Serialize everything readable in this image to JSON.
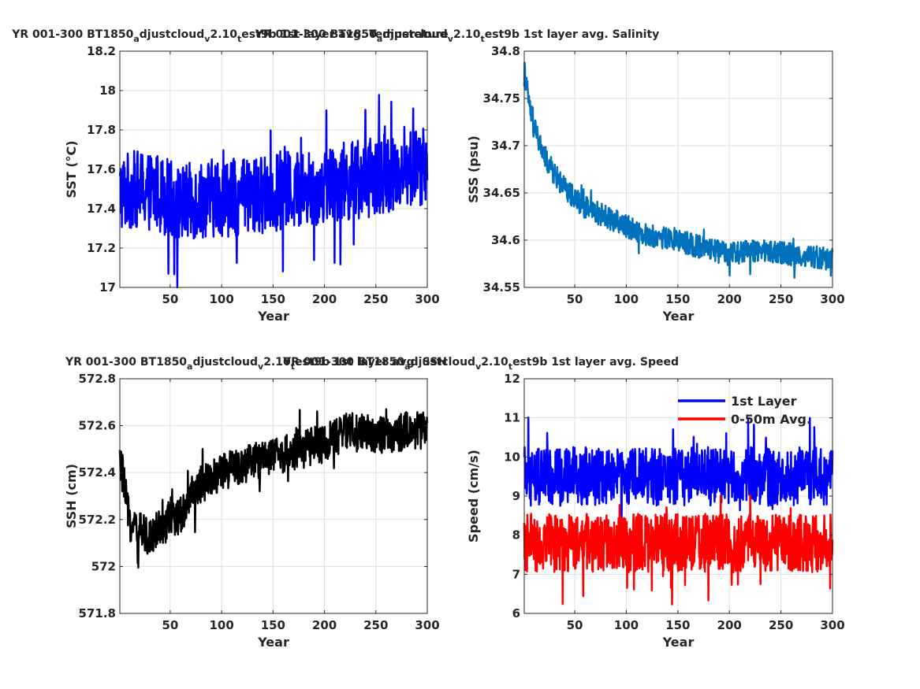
{
  "chart_data": [
    {
      "type": "line",
      "title": {
        "base": "YR 001-300 BT1850",
        "s1": "a",
        "m1": "djustcloud",
        "s2": "v",
        "m2": "2.10",
        "s3": "t",
        "end": "est9b 1st layer avg. Temperature"
      },
      "xlabel": "Year",
      "ylabel": "SST (°C)",
      "xlim": [
        1,
        300
      ],
      "ylim": [
        17,
        18.2
      ],
      "xticks": [
        50,
        100,
        150,
        200,
        250,
        300
      ],
      "yticks": [
        17,
        17.2,
        17.4,
        17.6,
        17.8,
        18,
        18.2
      ],
      "ytick_labels": [
        "17",
        "17.2",
        "17.4",
        "17.6",
        "17.8",
        "18",
        "18.2"
      ],
      "grid": true,
      "series": [
        {
          "color": "#0000ff",
          "x": [
            1,
            20,
            40,
            60,
            80,
            100,
            120,
            140,
            160,
            180,
            200,
            220,
            240,
            260,
            280,
            300
          ],
          "y": [
            17.48,
            17.5,
            17.48,
            17.42,
            17.45,
            17.46,
            17.45,
            17.47,
            17.49,
            17.5,
            17.52,
            17.54,
            17.55,
            17.58,
            17.6,
            17.62
          ],
          "spread": 0.2
        }
      ]
    },
    {
      "type": "line",
      "title": {
        "base": "YR 001-300 BT1850",
        "s1": "a",
        "m1": "djustcloud",
        "s2": "v",
        "m2": "2.10",
        "s3": "t",
        "end": "est9b 1st layer avg. Salinity"
      },
      "xlabel": "Year",
      "ylabel": "SSS (psu)",
      "xlim": [
        1,
        300
      ],
      "ylim": [
        34.55,
        34.8
      ],
      "xticks": [
        50,
        100,
        150,
        200,
        250,
        300
      ],
      "yticks": [
        34.55,
        34.6,
        34.65,
        34.7,
        34.75,
        34.8
      ],
      "ytick_labels": [
        "34.55",
        "34.6",
        "34.65",
        "34.7",
        "34.75",
        "34.8"
      ],
      "grid": true,
      "series": [
        {
          "color": "#0072bd",
          "x": [
            1,
            5,
            10,
            20,
            30,
            40,
            50,
            60,
            80,
            100,
            120,
            150,
            180,
            200,
            230,
            260,
            300
          ],
          "y": [
            34.78,
            34.75,
            34.72,
            34.69,
            34.67,
            34.655,
            34.645,
            34.635,
            34.625,
            34.615,
            34.605,
            34.6,
            34.59,
            34.585,
            34.59,
            34.585,
            34.58
          ],
          "spread": 0.012
        }
      ]
    },
    {
      "type": "line",
      "title": {
        "base": "YR 001-300 BT1850",
        "s1": "a",
        "m1": "djustcloud",
        "s2": "v",
        "m2": "2.10",
        "s3": "t",
        "end": "est9b 1st layer avg. SSH"
      },
      "xlabel": "Year",
      "ylabel": "SSH (cm)",
      "xlim": [
        1,
        300
      ],
      "ylim": [
        571.8,
        572.8
      ],
      "xticks": [
        50,
        100,
        150,
        200,
        250,
        300
      ],
      "yticks": [
        571.8,
        572,
        572.2,
        572.4,
        572.6,
        572.8
      ],
      "ytick_labels": [
        "571.8",
        "572",
        "572.2",
        "572.4",
        "572.6",
        "572.8"
      ],
      "grid": true,
      "series": [
        {
          "color": "#000000",
          "x": [
            1,
            5,
            10,
            20,
            30,
            40,
            50,
            60,
            70,
            80,
            100,
            120,
            140,
            160,
            180,
            200,
            220,
            240,
            260,
            280,
            300
          ],
          "y": [
            572.45,
            572.35,
            572.2,
            572.15,
            572.13,
            572.17,
            572.2,
            572.22,
            572.3,
            572.35,
            572.4,
            572.43,
            572.46,
            572.48,
            572.5,
            572.53,
            572.57,
            572.58,
            572.55,
            572.58,
            572.58
          ],
          "spread": 0.08
        }
      ]
    },
    {
      "type": "line",
      "title": {
        "base": "YR 001-300 BT1850",
        "s1": "a",
        "m1": "djustcloud",
        "s2": "v",
        "m2": "2.10",
        "s3": "t",
        "end": "est9b 1st layer avg. Speed"
      },
      "xlabel": "Year",
      "ylabel": "Speed (cm/s)",
      "xlim": [
        1,
        300
      ],
      "ylim": [
        6,
        12
      ],
      "xticks": [
        50,
        100,
        150,
        200,
        250,
        300
      ],
      "yticks": [
        6,
        7,
        8,
        9,
        10,
        11,
        12
      ],
      "ytick_labels": [
        "6",
        "7",
        "8",
        "9",
        "10",
        "11",
        "12"
      ],
      "grid": true,
      "legend": "top-right",
      "series": [
        {
          "name": "1st Layer",
          "color": "#0000ff",
          "x": [
            1,
            300
          ],
          "y": [
            9.5,
            9.5
          ],
          "spread": 0.75
        },
        {
          "name": "0-50m Avg.",
          "color": "#ff0000",
          "x": [
            1,
            300
          ],
          "y": [
            7.8,
            7.8
          ],
          "spread": 0.75
        }
      ]
    }
  ]
}
